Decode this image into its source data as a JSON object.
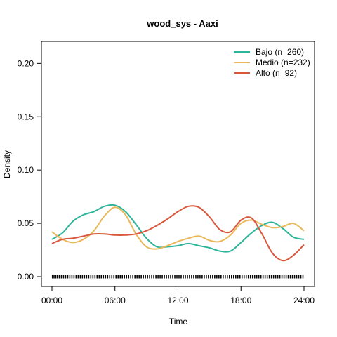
{
  "chart_data": {
    "type": "line",
    "title": "wood_sys - Aaxi",
    "xlabel": "Time",
    "ylabel": "Density",
    "xlim": [
      0,
      24
    ],
    "ylim": [
      0,
      0.22
    ],
    "x_ticks": [
      {
        "value": 0,
        "label": "00:00"
      },
      {
        "value": 6,
        "label": "06:00"
      },
      {
        "value": 12,
        "label": "12:00"
      },
      {
        "value": 18,
        "label": "18:00"
      },
      {
        "value": 24,
        "label": "24:00"
      }
    ],
    "y_ticks": [
      {
        "value": 0.0,
        "label": "0.00"
      },
      {
        "value": 0.05,
        "label": "0.05"
      },
      {
        "value": 0.1,
        "label": "0.10"
      },
      {
        "value": 0.15,
        "label": "0.15"
      },
      {
        "value": 0.2,
        "label": "0.20"
      }
    ],
    "grid": false,
    "legend_position": "top-right",
    "rug": true,
    "series": [
      {
        "name": "Bajo (n=260)",
        "color": "#2cb59a",
        "x": [
          0,
          1,
          2,
          3,
          4,
          5,
          6,
          7,
          8,
          9,
          10,
          11,
          12,
          13,
          14,
          15,
          16,
          17,
          18,
          19,
          20,
          21,
          22,
          23,
          24
        ],
        "y": [
          0.035,
          0.041,
          0.052,
          0.058,
          0.061,
          0.066,
          0.067,
          0.061,
          0.049,
          0.036,
          0.028,
          0.028,
          0.029,
          0.031,
          0.029,
          0.027,
          0.024,
          0.024,
          0.032,
          0.041,
          0.048,
          0.051,
          0.045,
          0.037,
          0.035
        ]
      },
      {
        "name": "Medio (n=232)",
        "color": "#e9b85a",
        "x": [
          0,
          1,
          2,
          3,
          4,
          5,
          6,
          7,
          8,
          9,
          10,
          11,
          12,
          13,
          14,
          15,
          16,
          17,
          18,
          19,
          20,
          21,
          22,
          23,
          24
        ],
        "y": [
          0.042,
          0.035,
          0.032,
          0.035,
          0.043,
          0.057,
          0.065,
          0.058,
          0.04,
          0.028,
          0.026,
          0.029,
          0.033,
          0.036,
          0.038,
          0.034,
          0.033,
          0.039,
          0.05,
          0.053,
          0.049,
          0.046,
          0.047,
          0.05,
          0.043
        ]
      },
      {
        "name": "Alto (n=92)",
        "color": "#d9583d",
        "x": [
          0,
          1,
          2,
          3,
          4,
          5,
          6,
          7,
          8,
          9,
          10,
          11,
          12,
          13,
          14,
          15,
          16,
          17,
          18,
          19,
          20,
          21,
          22,
          23,
          24
        ],
        "y": [
          0.031,
          0.035,
          0.036,
          0.038,
          0.04,
          0.04,
          0.039,
          0.039,
          0.04,
          0.043,
          0.048,
          0.054,
          0.061,
          0.066,
          0.065,
          0.056,
          0.044,
          0.042,
          0.053,
          0.055,
          0.04,
          0.022,
          0.015,
          0.02,
          0.03
        ]
      }
    ],
    "rug_x": [
      0.05,
      0.2,
      0.35,
      0.5,
      0.7,
      0.9,
      1.1,
      1.3,
      1.5,
      1.7,
      1.9,
      2.1,
      2.3,
      2.5,
      2.7,
      2.9,
      3.1,
      3.3,
      3.5,
      3.7,
      3.9,
      4.1,
      4.3,
      4.5,
      4.7,
      4.9,
      5.1,
      5.3,
      5.5,
      5.7,
      5.9,
      6.1,
      6.3,
      6.5,
      6.7,
      6.9,
      7.1,
      7.3,
      7.5,
      7.7,
      7.9,
      8.1,
      8.3,
      8.5,
      8.7,
      8.9,
      9.1,
      9.3,
      9.5,
      9.7,
      9.9,
      10.1,
      10.3,
      10.5,
      10.7,
      10.9,
      11.1,
      11.3,
      11.5,
      11.7,
      11.9,
      12.1,
      12.3,
      12.5,
      12.7,
      12.9,
      13.1,
      13.3,
      13.5,
      13.7,
      13.9,
      14.1,
      14.3,
      14.5,
      14.7,
      14.9,
      15.1,
      15.3,
      15.5,
      15.7,
      15.9,
      16.1,
      16.3,
      16.5,
      16.7,
      16.9,
      17.1,
      17.3,
      17.5,
      17.7,
      17.9,
      18.1,
      18.3,
      18.5,
      18.7,
      18.9,
      19.1,
      19.3,
      19.5,
      19.7,
      19.9,
      20.1,
      20.3,
      20.5,
      20.7,
      20.9,
      21.1,
      21.3,
      21.5,
      21.7,
      21.9,
      22.1,
      22.3,
      22.5,
      22.7,
      22.9,
      23.1,
      23.3,
      23.5,
      23.7,
      23.9
    ]
  }
}
